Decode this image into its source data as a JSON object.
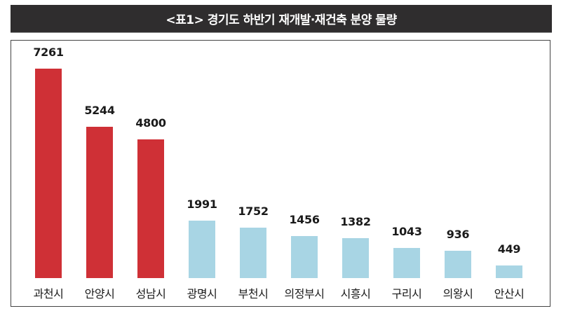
{
  "title": "<표1> 경기도 하반기 재개발·재건축 분양 물량",
  "colors": {
    "highlight": "#cf3036",
    "normal": "#a8d5e4",
    "title_bg": "#2f2d2e"
  },
  "chart_data": {
    "type": "bar",
    "title": "<표1> 경기도 하반기 재개발·재건축 분양 물량",
    "xlabel": "",
    "ylabel": "",
    "categories": [
      "과천시",
      "안양시",
      "성남시",
      "광명시",
      "부천시",
      "의정부시",
      "시흥시",
      "구리시",
      "의왕시",
      "안산시"
    ],
    "values": [
      7261,
      5244,
      4800,
      1991,
      1752,
      1456,
      1382,
      1043,
      936,
      449
    ],
    "bar_colors": [
      "#cf3036",
      "#cf3036",
      "#cf3036",
      "#a8d5e4",
      "#a8d5e4",
      "#a8d5e4",
      "#a8d5e4",
      "#a8d5e4",
      "#a8d5e4",
      "#a8d5e4"
    ],
    "data_labels": true,
    "grid": false,
    "axes_visible": false,
    "legend": null,
    "ylim": [
      0,
      7261
    ]
  },
  "bars": [
    {
      "label": "과천시",
      "value": "7261"
    },
    {
      "label": "안양시",
      "value": "5244"
    },
    {
      "label": "성남시",
      "value": "4800"
    },
    {
      "label": "광명시",
      "value": "1991"
    },
    {
      "label": "부천시",
      "value": "1752"
    },
    {
      "label": "의정부시",
      "value": "1456"
    },
    {
      "label": "시흥시",
      "value": "1382"
    },
    {
      "label": "구리시",
      "value": "1043"
    },
    {
      "label": "의왕시",
      "value": "936"
    },
    {
      "label": "안산시",
      "value": "449"
    }
  ]
}
